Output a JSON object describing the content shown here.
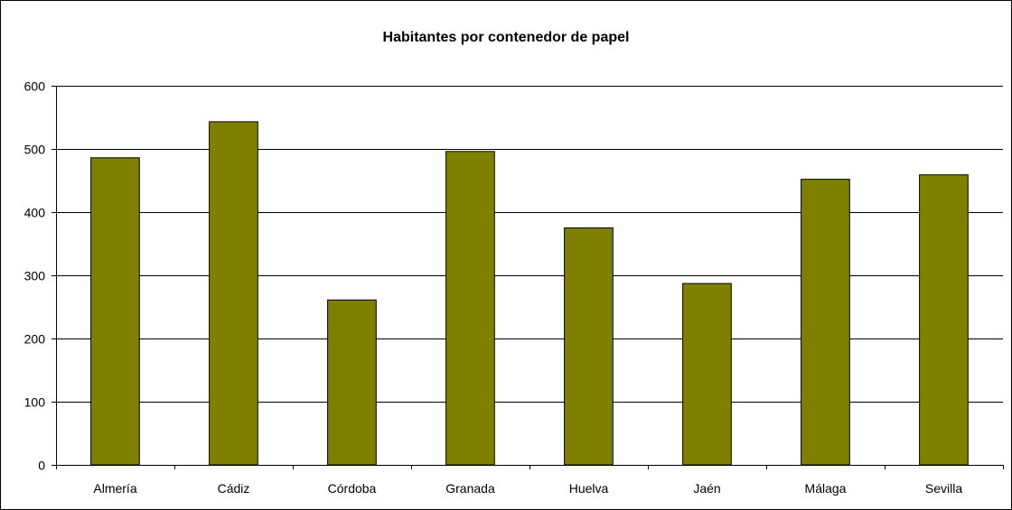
{
  "chart_data": {
    "type": "bar",
    "title": "Habitantes por contenedor de papel",
    "xlabel": "",
    "ylabel": "",
    "categories": [
      "Almería",
      "Cádiz",
      "Córdoba",
      "Granada",
      "Huelva",
      "Jaén",
      "Málaga",
      "Sevilla"
    ],
    "values": [
      486,
      543,
      261,
      496,
      375,
      287,
      452,
      459
    ],
    "ylim": [
      0,
      600
    ],
    "yticks": [
      "0",
      "100",
      "200",
      "300",
      "400",
      "500",
      "600"
    ],
    "grid": true,
    "legend": "none",
    "bar_color": "#808000",
    "bar_outline_color": "#000000"
  }
}
